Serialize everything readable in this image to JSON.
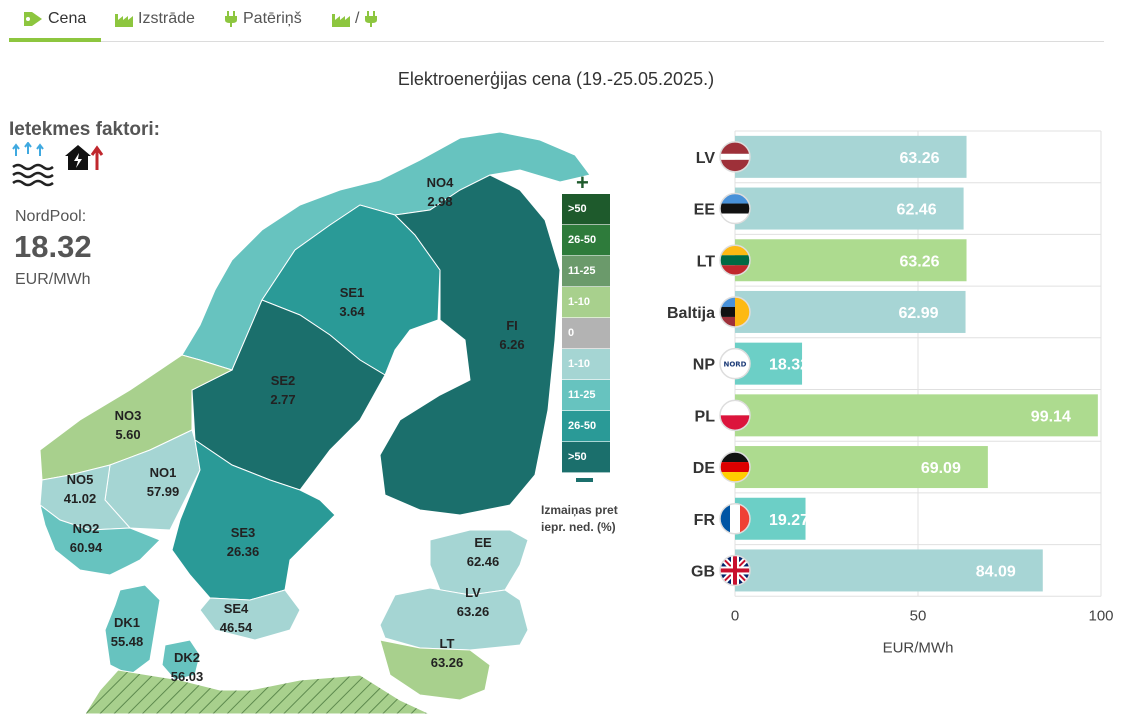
{
  "tabs": [
    {
      "label": "Cena",
      "icon": "tag-icon",
      "active": true
    },
    {
      "label": "Izstrāde",
      "icon": "factory-icon",
      "active": false
    },
    {
      "label": "Patēriņš",
      "icon": "plug-icon",
      "active": false
    },
    {
      "label": "/",
      "icon": "factory-plug-icon",
      "active": false
    }
  ],
  "title": "Elektroenerģijas cena (19.-25.05.2025.)",
  "factors": {
    "title": "Ietekmes faktori:",
    "icons": [
      "water-wind-icon",
      "house-power-up-icon"
    ]
  },
  "nordpool": {
    "label": "NordPool:",
    "value": "18.32",
    "unit": "EUR/MWh"
  },
  "map": {
    "regions": [
      {
        "id": "NO4",
        "value": "2.98"
      },
      {
        "id": "SE1",
        "value": "3.64"
      },
      {
        "id": "FI",
        "value": "6.26"
      },
      {
        "id": "SE2",
        "value": "2.77"
      },
      {
        "id": "NO3",
        "value": "5.60"
      },
      {
        "id": "NO1",
        "value": "57.99"
      },
      {
        "id": "NO5",
        "value": "41.02"
      },
      {
        "id": "NO2",
        "value": "60.94"
      },
      {
        "id": "SE3",
        "value": "26.36"
      },
      {
        "id": "SE4",
        "value": "46.54"
      },
      {
        "id": "DK1",
        "value": "55.48"
      },
      {
        "id": "DK2",
        "value": "56.03"
      },
      {
        "id": "EE",
        "value": "62.46"
      },
      {
        "id": "LV",
        "value": "63.26"
      },
      {
        "id": "LT",
        "value": "63.26"
      }
    ]
  },
  "legend": {
    "plus": "+",
    "items": [
      {
        "label": ">50",
        "color": "#1e5a2c"
      },
      {
        "label": "26-50",
        "color": "#2e7b3b"
      },
      {
        "label": "11-25",
        "color": "#6b9a6b"
      },
      {
        "label": "1-10",
        "color": "#a8d08d"
      },
      {
        "label": "0",
        "color": "#b3b3b3"
      },
      {
        "label": "1-10",
        "color": "#a5d5d3"
      },
      {
        "label": "11-25",
        "color": "#67c3bf"
      },
      {
        "label": "26-50",
        "color": "#2a9a97"
      },
      {
        "label": ">50",
        "color": "#1b6f6c"
      }
    ],
    "caption_line1": "Izmaiņas pret",
    "caption_line2": "iepr. ned. (%)"
  },
  "colors": {
    "accent": "#8dc63f",
    "bar_green": "#addb8f",
    "bar_teal": "#a7d5d5",
    "bar_mint": "#6ccfc6"
  },
  "chart_data": {
    "type": "bar",
    "orientation": "horizontal",
    "categories": [
      "LV",
      "EE",
      "LT",
      "Baltija",
      "NP",
      "PL",
      "DE",
      "FR",
      "GB"
    ],
    "values": [
      63.26,
      62.46,
      63.26,
      62.99,
      18.32,
      99.14,
      69.09,
      19.27,
      84.09
    ],
    "value_labels": [
      "63.26",
      "62.46",
      "63.26",
      "62.99",
      "18.32",
      "99.14",
      "69.09",
      "19.27",
      "84.09"
    ],
    "bar_colors": [
      "#a7d5d5",
      "#a7d5d5",
      "#addb8f",
      "#a7d5d5",
      "#6ccfc6",
      "#addb8f",
      "#addb8f",
      "#6ccfc6",
      "#a7d5d5"
    ],
    "flags": [
      "latvia-flag-icon",
      "estonia-flag-icon",
      "lithuania-flag-icon",
      "baltic-flag-icon",
      "nordpool-logo-icon",
      "poland-flag-icon",
      "germany-flag-icon",
      "france-flag-icon",
      "uk-flag-icon"
    ],
    "xlim": [
      0,
      100
    ],
    "xticks": [
      0,
      50,
      100
    ],
    "xlabel": "EUR/MWh",
    "grid": true
  }
}
